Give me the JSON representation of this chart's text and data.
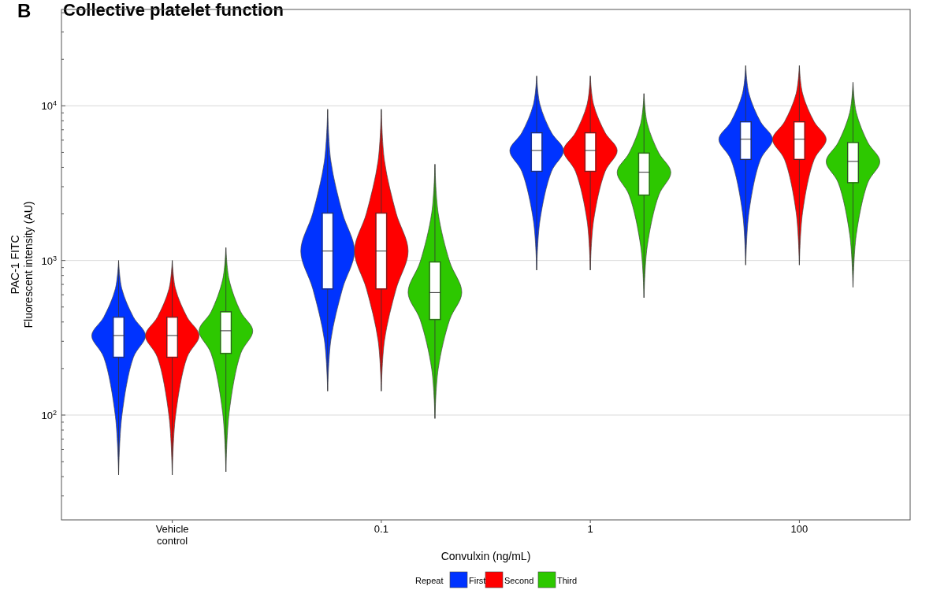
{
  "chart_data": {
    "type": "box",
    "title": "Collective platelet function",
    "annotations": [
      "B"
    ],
    "xlabel": "Convulxin (ng/mL)",
    "ylabel": "PAC-1 FITC\nFluorescent intensity (AU)",
    "legend_title": "Repeat",
    "legend": "bottom",
    "log": true,
    "grid": "y",
    "categories": [
      "Vehicle\ncontrol",
      "0.1",
      "1",
      "100"
    ],
    "ylim": [
      21,
      42000
    ],
    "yticks": [
      {
        "value": 30,
        "label": null
      },
      {
        "value": 40,
        "label": null
      },
      {
        "value": 50,
        "label": null
      },
      {
        "value": 60,
        "label": null
      },
      {
        "value": 70,
        "label": null
      },
      {
        "value": 80,
        "label": null
      },
      {
        "value": 90,
        "label": null
      },
      {
        "value": 100,
        "label": "10$^{2}$"
      },
      {
        "value": 200,
        "label": null
      },
      {
        "value": 300,
        "label": null
      },
      {
        "value": 400,
        "label": null
      },
      {
        "value": 500,
        "label": null
      },
      {
        "value": 600,
        "label": null
      },
      {
        "value": 700,
        "label": null
      },
      {
        "value": 800,
        "label": null
      },
      {
        "value": 900,
        "label": null
      },
      {
        "value": 1000,
        "label": "10$^{3}$"
      },
      {
        "value": 2000,
        "label": null
      },
      {
        "value": 3000,
        "label": null
      },
      {
        "value": 4000,
        "label": null
      },
      {
        "value": 5000,
        "label": null
      },
      {
        "value": 6000,
        "label": null
      },
      {
        "value": 7000,
        "label": null
      },
      {
        "value": 8000,
        "label": null
      },
      {
        "value": 9000,
        "label": null
      },
      {
        "value": 10000,
        "label": "10$^{4}$"
      },
      {
        "value": 20000,
        "label": null
      },
      {
        "value": 30000,
        "label": null
      },
      {
        "value": 40000,
        "label": null
      }
    ],
    "series": [
      {
        "name": "First",
        "color": "#0033ff",
        "boxes": [
          {
            "low": 41,
            "q1": 236,
            "median": 327,
            "q3": 431,
            "high": 1000
          },
          {
            "low": 143,
            "q1": 653,
            "median": 1150,
            "q3": 2030,
            "high": 9500
          },
          {
            "low": 865,
            "q1": 3760,
            "median": 5140,
            "q3": 6710,
            "high": 15600
          },
          {
            "low": 935,
            "q1": 4490,
            "median": 6080,
            "q3": 7900,
            "high": 18200
          }
        ]
      },
      {
        "name": "Second",
        "color": "#ff0000",
        "boxes": [
          {
            "low": 41,
            "q1": 236,
            "median": 327,
            "q3": 431,
            "high": 1000
          },
          {
            "low": 143,
            "q1": 653,
            "median": 1150,
            "q3": 2030,
            "high": 9500
          },
          {
            "low": 865,
            "q1": 3760,
            "median": 5140,
            "q3": 6710,
            "high": 15600
          },
          {
            "low": 935,
            "q1": 4490,
            "median": 6080,
            "q3": 7900,
            "high": 18200
          }
        ]
      },
      {
        "name": "Third",
        "color": "#2dc800",
        "boxes": [
          {
            "low": 43,
            "q1": 250,
            "median": 351,
            "q3": 466,
            "high": 1210
          },
          {
            "low": 95,
            "q1": 414,
            "median": 620,
            "q3": 980,
            "high": 4190
          },
          {
            "low": 574,
            "q1": 2640,
            "median": 3720,
            "q3": 4960,
            "high": 12000
          },
          {
            "low": 671,
            "q1": 3180,
            "median": 4370,
            "q3": 5800,
            "high": 14200
          }
        ]
      }
    ]
  }
}
